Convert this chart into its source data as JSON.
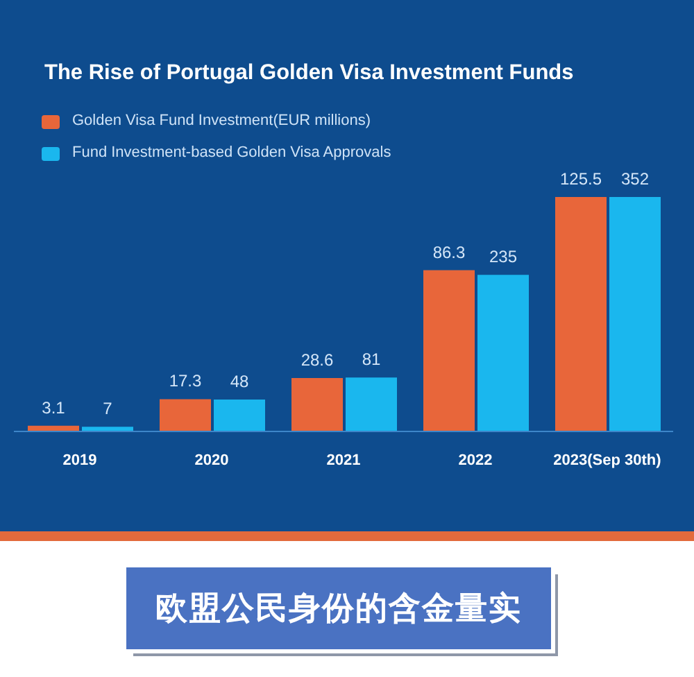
{
  "chart_data": {
    "type": "bar",
    "title": "The Rise of Portugal Golden Visa Investment Funds",
    "categories": [
      "2019",
      "2020",
      "2021",
      "2022",
      "2023(Sep 30th)"
    ],
    "series": [
      {
        "name": "Golden Visa Fund Investment(EUR millions)",
        "color": "#e8663a",
        "values": [
          3.1,
          17.3,
          28.6,
          86.3,
          125.5
        ]
      },
      {
        "name": "Fund Investment-based Golden Visa Approvals",
        "color": "#1ab7ee",
        "values": [
          7,
          48,
          81,
          235,
          352
        ],
        "axis": "y2"
      }
    ],
    "data_labels": true,
    "legend": "top left",
    "tick_labels": "x",
    "annotations": [
      "欧盟公民身份的含金量实"
    ]
  }
}
